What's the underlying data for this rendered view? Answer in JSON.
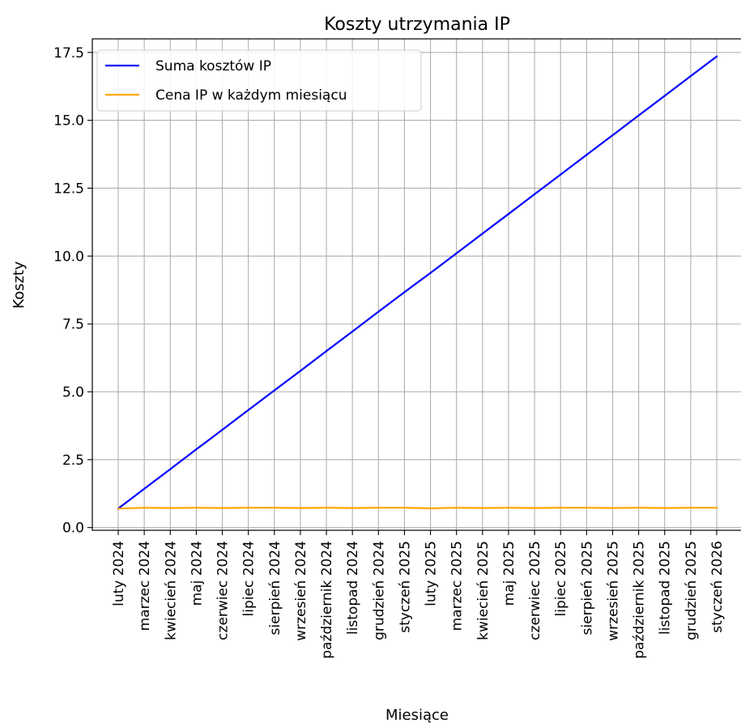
{
  "chart_data": {
    "type": "line",
    "title": "Koszty utrzymania IP",
    "xlabel": "Miesiące",
    "ylabel": "Koszty",
    "ylim": [
      -0.1,
      18.0
    ],
    "yticks": [
      0.0,
      2.5,
      5.0,
      7.5,
      10.0,
      12.5,
      15.0,
      17.5
    ],
    "ytick_labels": [
      "0.0",
      "2.5",
      "5.0",
      "7.5",
      "10.0",
      "12.5",
      "15.0",
      "17.5"
    ],
    "grid": true,
    "legend_position": "top-left",
    "categories": [
      "luty 2024",
      "marzec 2024",
      "kwiecień 2024",
      "maj 2024",
      "czerwiec 2024",
      "lipiec 2024",
      "sierpień 2024",
      "wrzesień 2024",
      "październik 2024",
      "listopad 2024",
      "grudzień 2024",
      "styczeń 2025",
      "luty 2025",
      "marzec 2025",
      "kwiecień 2025",
      "maj 2025",
      "czerwiec 2025",
      "lipiec 2025",
      "sierpień 2025",
      "wrzesień 2025",
      "październik 2025",
      "listopad 2025",
      "grudzień 2025",
      "styczeń 2026"
    ],
    "series": [
      {
        "name": "Suma kosztów IP",
        "color": "#0000ff",
        "values": [
          0.7,
          1.43,
          2.15,
          2.88,
          3.6,
          4.33,
          5.05,
          5.77,
          6.5,
          7.22,
          7.95,
          8.67,
          9.38,
          10.1,
          10.83,
          11.55,
          12.28,
          13.0,
          13.73,
          14.45,
          15.18,
          15.9,
          16.63,
          17.35
        ]
      },
      {
        "name": "Cena IP w każdym miesiącu",
        "color": "#ffa500",
        "values": [
          0.7,
          0.73,
          0.72,
          0.73,
          0.72,
          0.73,
          0.73,
          0.72,
          0.73,
          0.72,
          0.73,
          0.73,
          0.71,
          0.73,
          0.72,
          0.73,
          0.72,
          0.73,
          0.73,
          0.72,
          0.73,
          0.72,
          0.73,
          0.73
        ]
      }
    ]
  }
}
